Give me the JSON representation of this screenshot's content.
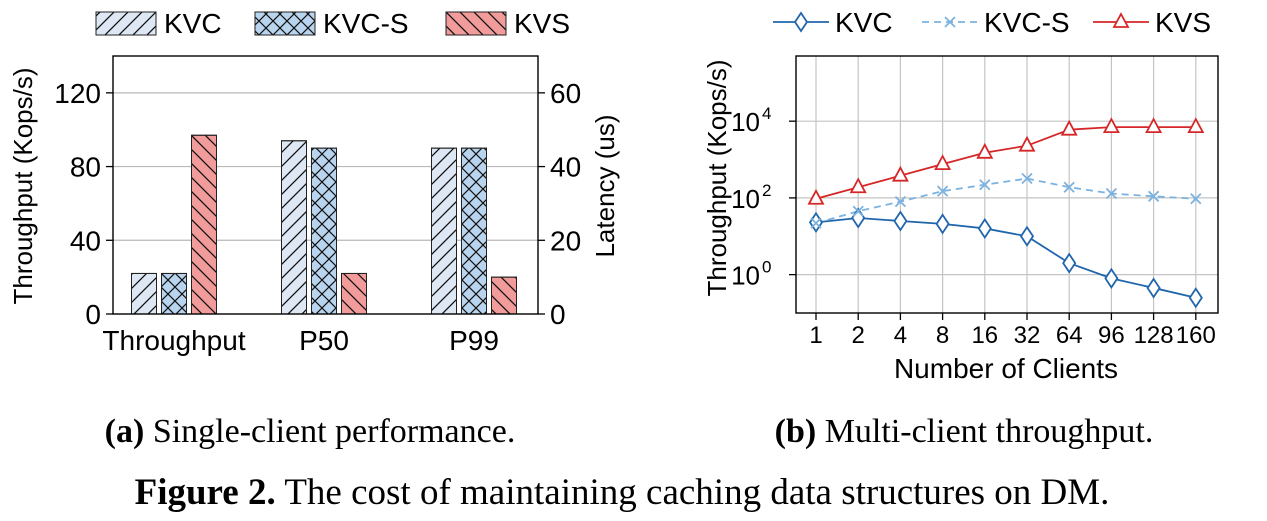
{
  "figure": {
    "caption_label": "Figure 2.",
    "caption_text": "The cost of maintaining caching data structures on DM."
  },
  "chart_data": [
    {
      "type": "bar",
      "subcaption_label": "(a)",
      "subcaption_text": "Single-client performance.",
      "categories": [
        "Throughput",
        "P50",
        "P99"
      ],
      "ylabel": "Throughput (Kops/s)",
      "y2label": "Latency (us)",
      "ylim": [
        0,
        140
      ],
      "y2lim": [
        0,
        70
      ],
      "yticks": [
        "0",
        "40",
        "80",
        "120"
      ],
      "y2ticks": [
        "0",
        "20",
        "40",
        "60"
      ],
      "grid": true,
      "legend_position": "top",
      "series": [
        {
          "name": "KVC",
          "values": [
            22,
            47,
            45
          ],
          "color": "#dde8f4",
          "hatch": "//"
        },
        {
          "name": "KVC-S",
          "values": [
            22,
            45,
            45
          ],
          "color": "#b9d4ef",
          "hatch": "xx"
        },
        {
          "name": "KVS",
          "values": [
            97,
            11,
            10
          ],
          "color": "#f29b9b",
          "hatch": "\\\\"
        }
      ],
      "notes": "Throughput category uses left axis (Kops/s); P50 and P99 categories use right axis (us)."
    },
    {
      "type": "line",
      "subcaption_label": "(b)",
      "subcaption_text": "Multi-client throughput.",
      "xlabel": "Number of Clients",
      "ylabel": "Throughput (Kops/s)",
      "yscale": "log",
      "ylim": [
        0.1,
        500000
      ],
      "x": [
        "1",
        "2",
        "4",
        "8",
        "16",
        "32",
        "64",
        "96",
        "128",
        "160"
      ],
      "yticks": [
        {
          "value": 1,
          "base": "10",
          "exp": "0"
        },
        {
          "value": 100,
          "base": "10",
          "exp": "2"
        },
        {
          "value": 10000,
          "base": "10",
          "exp": "4"
        }
      ],
      "grid": true,
      "legend_position": "top",
      "series": [
        {
          "name": "KVC",
          "values": [
            23,
            30,
            25,
            21,
            16,
            10,
            2.0,
            0.8,
            0.45,
            0.25
          ],
          "color": "#2166ac",
          "marker": "diamond",
          "dash": "solid"
        },
        {
          "name": "KVC-S",
          "values": [
            22,
            45,
            80,
            150,
            220,
            320,
            190,
            130,
            110,
            95
          ],
          "color": "#7bb2e0",
          "marker": "x",
          "dash": "dashed"
        },
        {
          "name": "KVS",
          "values": [
            95,
            190,
            380,
            760,
            1500,
            2300,
            6000,
            7000,
            7000,
            7000
          ],
          "color": "#d62728",
          "marker": "triangle",
          "dash": "solid"
        }
      ]
    }
  ]
}
